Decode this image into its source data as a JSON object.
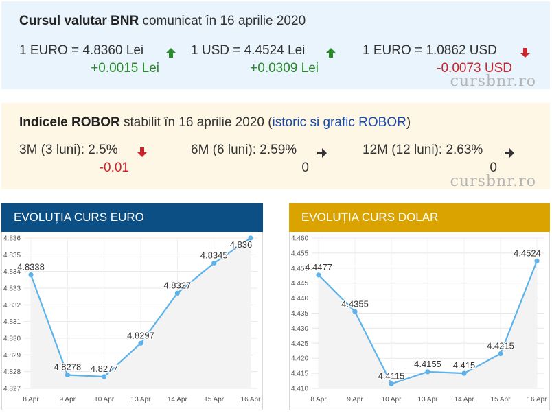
{
  "bnr": {
    "title_bold": "Cursul valutar BNR",
    "title_rest": " comunicat în 16 aprilie 2020",
    "rates": [
      {
        "label": "1 EURO = 4.8360 Lei",
        "change": "+0.0015 Lei",
        "direction": "up"
      },
      {
        "label": "1 USD = 4.4524 Lei",
        "change": "+0.0309 Lei",
        "direction": "up"
      },
      {
        "label": "1 EURO = 1.0862 USD",
        "change": "-0.0073 USD",
        "direction": "down"
      }
    ],
    "watermark": "cursbnr.ro"
  },
  "robor": {
    "title_bold": "Indicele ROBOR",
    "title_rest": " stabilit în 16 aprilie 2020 (",
    "link": "istoric si grafic ROBOR",
    "title_end": ")",
    "rates": [
      {
        "label": "3M (3 luni): 2.5%",
        "change": "-0.01",
        "direction": "down"
      },
      {
        "label": "6M (6 luni): 2.59%",
        "change": "0",
        "direction": "flat"
      },
      {
        "label": "12M (12 luni): 2.63%",
        "change": "0",
        "direction": "flat"
      }
    ],
    "watermark": "cursbnr.ro"
  },
  "colors": {
    "up": "#2a8a2a",
    "down": "#c9252b",
    "euro_header": "#0b4f84",
    "dolar_header": "#dba300",
    "line": "#5db2ea"
  },
  "chart_data": [
    {
      "type": "line",
      "title": "EVOLUȚIA CURS EURO",
      "categories": [
        "8 Apr",
        "9 Apr",
        "10 Apr",
        "13 Apr",
        "14 Apr",
        "15 Apr",
        "16 Apr"
      ],
      "values": [
        4.8338,
        4.8278,
        4.8277,
        4.8297,
        4.8327,
        4.8345,
        4.836
      ],
      "data_labels": [
        "4.8338",
        "4.8278",
        "4.8277",
        "4.8297",
        "4.8327",
        "4.8345",
        "4.836"
      ],
      "yticks": [
        "4.827",
        "4.828",
        "4.829",
        "4.830",
        "4.831",
        "4.832",
        "4.833",
        "4.834",
        "4.835",
        "4.836"
      ],
      "ylim": [
        4.827,
        4.836
      ]
    },
    {
      "type": "line",
      "title": "EVOLUȚIA CURS DOLAR",
      "categories": [
        "8 Apr",
        "9 Apr",
        "10 Apr",
        "13 Apr",
        "14 Apr",
        "15 Apr",
        "16 Apr"
      ],
      "values": [
        4.4477,
        4.4355,
        4.4115,
        4.4155,
        4.415,
        4.4215,
        4.4524
      ],
      "data_labels": [
        "4.4477",
        "4.4355",
        "4.4115",
        "4.4155",
        "4.415",
        "4.4215",
        "4.4524"
      ],
      "yticks": [
        "4.410",
        "4.415",
        "4.420",
        "4.425",
        "4.430",
        "4.435",
        "4.440",
        "4.445",
        "4.450",
        "4.455",
        "4.460"
      ],
      "ylim": [
        4.41,
        4.46
      ]
    }
  ]
}
